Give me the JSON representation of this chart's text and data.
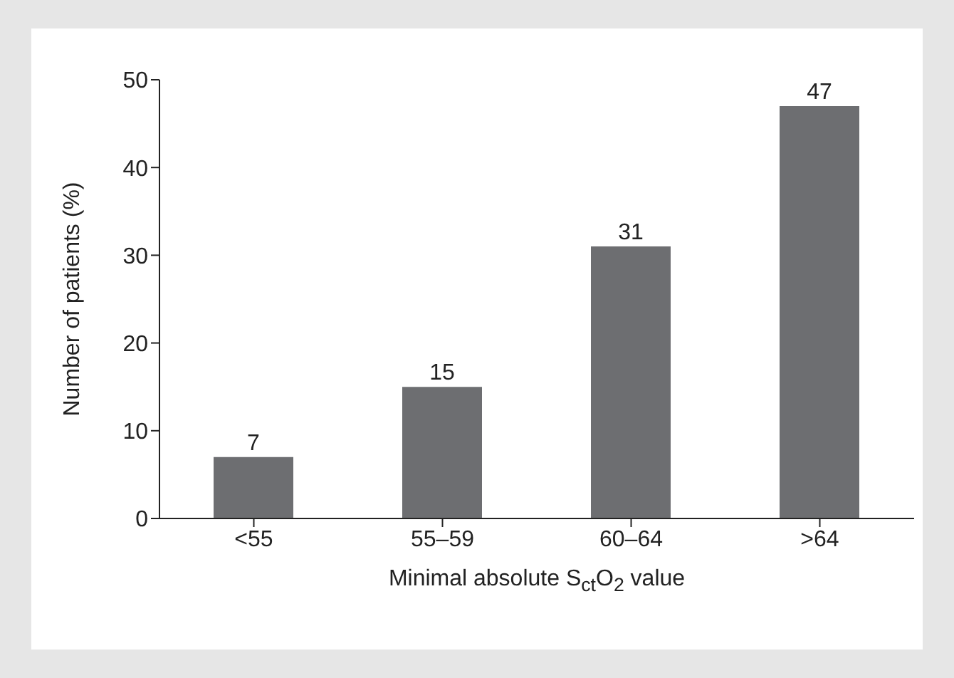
{
  "chart_data": {
    "type": "bar",
    "xlabel": "Minimal absolute S$_{ct}$O$_{2}$ value",
    "ylabel": "Number of patients (%)",
    "categories": [
      "<55",
      "55–59",
      "60–64",
      ">64"
    ],
    "values": [
      7,
      15,
      31,
      47
    ],
    "color": "#6d6e71",
    "ylim": [
      0,
      50
    ],
    "yticks": [
      0,
      10,
      20,
      30,
      40,
      50
    ],
    "grid": false,
    "data_labels": true
  }
}
